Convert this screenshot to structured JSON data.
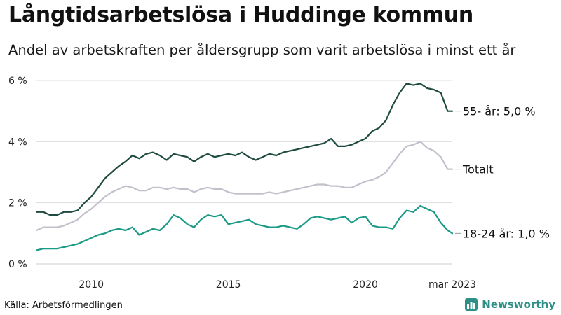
{
  "header": {
    "title": "Långtidsarbetslösa i Huddinge kommun",
    "subtitle": "Andel av arbetskraften per åldersgrupp som varit arbetslösa i minst ett år"
  },
  "footer": {
    "source": "Källa: Arbetsförmedlingen",
    "brand": "Newsworthy"
  },
  "colors": {
    "brand": "#2e8f86",
    "grid": "#dddddd",
    "axis_text": "#222222"
  },
  "chart_data": {
    "type": "line",
    "x_unit": "year",
    "x_range": [
      2008.0,
      2023.17
    ],
    "x_ticks": [
      {
        "value": 2010,
        "label": "2010"
      },
      {
        "value": 2015,
        "label": "2015"
      },
      {
        "value": 2020,
        "label": "2020"
      },
      {
        "value": 2023.17,
        "label": "mar 2023"
      }
    ],
    "ylim": [
      0,
      6
    ],
    "y_ticks": [
      {
        "value": 0,
        "label": "0 %"
      },
      {
        "value": 2,
        "label": "2 %"
      },
      {
        "value": 4,
        "label": "4 %"
      },
      {
        "value": 6,
        "label": "6 %"
      }
    ],
    "grid": "horizontal",
    "series": [
      {
        "name": "55- år",
        "end_label": "55- år: 5,0 %",
        "color": "#1f4a40",
        "points": [
          [
            2008.0,
            1.7
          ],
          [
            2008.25,
            1.7
          ],
          [
            2008.5,
            1.6
          ],
          [
            2008.75,
            1.6
          ],
          [
            2009.0,
            1.7
          ],
          [
            2009.25,
            1.7
          ],
          [
            2009.5,
            1.75
          ],
          [
            2009.75,
            2.0
          ],
          [
            2010.0,
            2.2
          ],
          [
            2010.25,
            2.5
          ],
          [
            2010.5,
            2.8
          ],
          [
            2010.75,
            3.0
          ],
          [
            2011.0,
            3.2
          ],
          [
            2011.25,
            3.35
          ],
          [
            2011.5,
            3.55
          ],
          [
            2011.75,
            3.45
          ],
          [
            2012.0,
            3.6
          ],
          [
            2012.25,
            3.65
          ],
          [
            2012.5,
            3.55
          ],
          [
            2012.75,
            3.4
          ],
          [
            2013.0,
            3.6
          ],
          [
            2013.25,
            3.55
          ],
          [
            2013.5,
            3.5
          ],
          [
            2013.75,
            3.35
          ],
          [
            2014.0,
            3.5
          ],
          [
            2014.25,
            3.6
          ],
          [
            2014.5,
            3.5
          ],
          [
            2014.75,
            3.55
          ],
          [
            2015.0,
            3.6
          ],
          [
            2015.25,
            3.55
          ],
          [
            2015.5,
            3.65
          ],
          [
            2015.75,
            3.5
          ],
          [
            2016.0,
            3.4
          ],
          [
            2016.25,
            3.5
          ],
          [
            2016.5,
            3.6
          ],
          [
            2016.75,
            3.55
          ],
          [
            2017.0,
            3.65
          ],
          [
            2017.25,
            3.7
          ],
          [
            2017.5,
            3.75
          ],
          [
            2017.75,
            3.8
          ],
          [
            2018.0,
            3.85
          ],
          [
            2018.25,
            3.9
          ],
          [
            2018.5,
            3.95
          ],
          [
            2018.75,
            4.1
          ],
          [
            2019.0,
            3.85
          ],
          [
            2019.25,
            3.85
          ],
          [
            2019.5,
            3.9
          ],
          [
            2019.75,
            4.0
          ],
          [
            2020.0,
            4.1
          ],
          [
            2020.25,
            4.35
          ],
          [
            2020.5,
            4.45
          ],
          [
            2020.75,
            4.7
          ],
          [
            2021.0,
            5.2
          ],
          [
            2021.25,
            5.6
          ],
          [
            2021.5,
            5.9
          ],
          [
            2021.75,
            5.85
          ],
          [
            2022.0,
            5.9
          ],
          [
            2022.25,
            5.75
          ],
          [
            2022.5,
            5.7
          ],
          [
            2022.75,
            5.6
          ],
          [
            2023.0,
            5.0
          ],
          [
            2023.17,
            5.0
          ]
        ]
      },
      {
        "name": "Totalt",
        "end_label": "Totalt",
        "color": "#c3c0cc",
        "points": [
          [
            2008.0,
            1.1
          ],
          [
            2008.25,
            1.2
          ],
          [
            2008.5,
            1.2
          ],
          [
            2008.75,
            1.2
          ],
          [
            2009.0,
            1.25
          ],
          [
            2009.25,
            1.35
          ],
          [
            2009.5,
            1.45
          ],
          [
            2009.75,
            1.65
          ],
          [
            2010.0,
            1.8
          ],
          [
            2010.25,
            2.0
          ],
          [
            2010.5,
            2.2
          ],
          [
            2010.75,
            2.35
          ],
          [
            2011.0,
            2.45
          ],
          [
            2011.25,
            2.55
          ],
          [
            2011.5,
            2.5
          ],
          [
            2011.75,
            2.4
          ],
          [
            2012.0,
            2.4
          ],
          [
            2012.25,
            2.5
          ],
          [
            2012.5,
            2.5
          ],
          [
            2012.75,
            2.45
          ],
          [
            2013.0,
            2.5
          ],
          [
            2013.25,
            2.45
          ],
          [
            2013.5,
            2.45
          ],
          [
            2013.75,
            2.35
          ],
          [
            2014.0,
            2.45
          ],
          [
            2014.25,
            2.5
          ],
          [
            2014.5,
            2.45
          ],
          [
            2014.75,
            2.45
          ],
          [
            2015.0,
            2.35
          ],
          [
            2015.25,
            2.3
          ],
          [
            2015.5,
            2.3
          ],
          [
            2015.75,
            2.3
          ],
          [
            2016.0,
            2.3
          ],
          [
            2016.25,
            2.3
          ],
          [
            2016.5,
            2.35
          ],
          [
            2016.75,
            2.3
          ],
          [
            2017.0,
            2.35
          ],
          [
            2017.25,
            2.4
          ],
          [
            2017.5,
            2.45
          ],
          [
            2017.75,
            2.5
          ],
          [
            2018.0,
            2.55
          ],
          [
            2018.25,
            2.6
          ],
          [
            2018.5,
            2.6
          ],
          [
            2018.75,
            2.55
          ],
          [
            2019.0,
            2.55
          ],
          [
            2019.25,
            2.5
          ],
          [
            2019.5,
            2.5
          ],
          [
            2019.75,
            2.6
          ],
          [
            2020.0,
            2.7
          ],
          [
            2020.25,
            2.75
          ],
          [
            2020.5,
            2.85
          ],
          [
            2020.75,
            3.0
          ],
          [
            2021.0,
            3.3
          ],
          [
            2021.25,
            3.6
          ],
          [
            2021.5,
            3.85
          ],
          [
            2021.75,
            3.9
          ],
          [
            2022.0,
            4.0
          ],
          [
            2022.25,
            3.8
          ],
          [
            2022.5,
            3.7
          ],
          [
            2022.75,
            3.5
          ],
          [
            2023.0,
            3.1
          ],
          [
            2023.17,
            3.1
          ]
        ]
      },
      {
        "name": "18-24 år",
        "end_label": "18-24 år: 1,0 %",
        "color": "#1b9a86",
        "points": [
          [
            2008.0,
            0.45
          ],
          [
            2008.25,
            0.5
          ],
          [
            2008.5,
            0.5
          ],
          [
            2008.75,
            0.5
          ],
          [
            2009.0,
            0.55
          ],
          [
            2009.25,
            0.6
          ],
          [
            2009.5,
            0.65
          ],
          [
            2009.75,
            0.75
          ],
          [
            2010.0,
            0.85
          ],
          [
            2010.25,
            0.95
          ],
          [
            2010.5,
            1.0
          ],
          [
            2010.75,
            1.1
          ],
          [
            2011.0,
            1.15
          ],
          [
            2011.25,
            1.1
          ],
          [
            2011.5,
            1.2
          ],
          [
            2011.75,
            0.95
          ],
          [
            2012.0,
            1.05
          ],
          [
            2012.25,
            1.15
          ],
          [
            2012.5,
            1.1
          ],
          [
            2012.75,
            1.3
          ],
          [
            2013.0,
            1.6
          ],
          [
            2013.25,
            1.5
          ],
          [
            2013.5,
            1.3
          ],
          [
            2013.75,
            1.2
          ],
          [
            2014.0,
            1.45
          ],
          [
            2014.25,
            1.6
          ],
          [
            2014.5,
            1.55
          ],
          [
            2014.75,
            1.6
          ],
          [
            2015.0,
            1.3
          ],
          [
            2015.25,
            1.35
          ],
          [
            2015.5,
            1.4
          ],
          [
            2015.75,
            1.45
          ],
          [
            2016.0,
            1.3
          ],
          [
            2016.25,
            1.25
          ],
          [
            2016.5,
            1.2
          ],
          [
            2016.75,
            1.2
          ],
          [
            2017.0,
            1.25
          ],
          [
            2017.25,
            1.2
          ],
          [
            2017.5,
            1.15
          ],
          [
            2017.75,
            1.3
          ],
          [
            2018.0,
            1.5
          ],
          [
            2018.25,
            1.55
          ],
          [
            2018.5,
            1.5
          ],
          [
            2018.75,
            1.45
          ],
          [
            2019.0,
            1.5
          ],
          [
            2019.25,
            1.55
          ],
          [
            2019.5,
            1.35
          ],
          [
            2019.75,
            1.5
          ],
          [
            2020.0,
            1.55
          ],
          [
            2020.25,
            1.25
          ],
          [
            2020.5,
            1.2
          ],
          [
            2020.75,
            1.2
          ],
          [
            2021.0,
            1.15
          ],
          [
            2021.25,
            1.5
          ],
          [
            2021.5,
            1.75
          ],
          [
            2021.75,
            1.7
          ],
          [
            2022.0,
            1.9
          ],
          [
            2022.25,
            1.8
          ],
          [
            2022.5,
            1.7
          ],
          [
            2022.75,
            1.35
          ],
          [
            2023.0,
            1.1
          ],
          [
            2023.17,
            1.0
          ]
        ]
      }
    ]
  }
}
